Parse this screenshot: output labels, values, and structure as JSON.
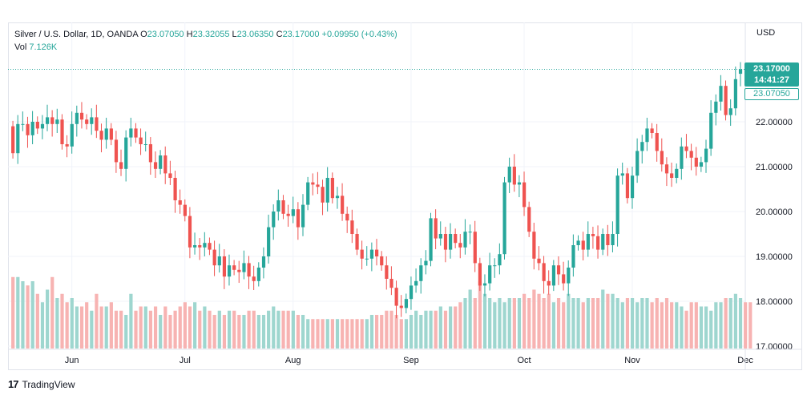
{
  "legend": {
    "symbol": "Silver / U.S. Dollar, 1D, OANDA",
    "o_label": "O",
    "o_value": "23.07050",
    "h_label": "H",
    "h_value": "23.32055",
    "l_label": "L",
    "l_value": "23.06350",
    "c_label": "C",
    "c_value": "23.17000",
    "change": "+0.09950 (+0.43%)",
    "vol_label": "Vol",
    "vol_value": "7.126K"
  },
  "currency": "USD",
  "last_price": "23.17000",
  "countdown": "14:41:27",
  "open_price": "23.07050",
  "branding": "TradingView",
  "colors": {
    "up": "#26a69a",
    "down": "#ef5350",
    "up_vol": "#9ed6cf",
    "down_vol": "#f7b3b2",
    "grid": "#f0f3fa"
  },
  "chart_data": {
    "type": "candlestick",
    "title": "Silver / U.S. Dollar, 1D, OANDA",
    "ylim": [
      17.0,
      24.0
    ],
    "y_ticks": [
      "17.00000",
      "18.00000",
      "19.00000",
      "20.00000",
      "21.00000",
      "22.00000"
    ],
    "x_ticks": [
      "Jun",
      "Jul",
      "Aug",
      "Sep",
      "Oct",
      "Nov",
      "Dec"
    ],
    "tick_index": [
      12,
      35,
      57,
      81,
      104,
      126,
      149
    ],
    "grid": true,
    "closes": [
      21.3,
      21.95,
      21.95,
      21.7,
      22.0,
      21.85,
      21.95,
      22.1,
      21.95,
      22.05,
      21.5,
      21.45,
      21.95,
      22.2,
      22.05,
      21.95,
      22.1,
      21.8,
      21.6,
      21.85,
      21.6,
      21.1,
      20.95,
      21.65,
      21.85,
      21.65,
      21.5,
      21.5,
      21.1,
      20.95,
      21.25,
      20.85,
      20.75,
      20.25,
      20.15,
      19.9,
      19.2,
      19.25,
      19.2,
      19.3,
      19.15,
      18.8,
      19.0,
      18.55,
      18.8,
      18.7,
      18.65,
      18.85,
      18.55,
      18.45,
      18.75,
      19.0,
      19.65,
      20.0,
      20.25,
      19.95,
      19.9,
      20.05,
      19.65,
      20.15,
      20.65,
      20.6,
      20.55,
      20.2,
      20.75,
      20.3,
      20.35,
      19.95,
      19.8,
      19.5,
      19.15,
      18.95,
      18.95,
      19.15,
      19.0,
      18.8,
      18.5,
      18.3,
      17.9,
      17.85,
      18.05,
      18.35,
      18.45,
      18.8,
      18.9,
      19.85,
      19.4,
      19.5,
      19.15,
      19.5,
      19.3,
      19.2,
      19.55,
      19.55,
      18.85,
      18.35,
      18.4,
      18.8,
      18.8,
      19.05,
      20.65,
      21.0,
      20.6,
      20.65,
      20.1,
      19.55,
      18.95,
      18.85,
      18.45,
      18.35,
      18.8,
      18.6,
      18.4,
      18.75,
      19.25,
      19.35,
      19.15,
      19.5,
      19.45,
      19.15,
      19.5,
      19.25,
      19.5,
      20.8,
      20.85,
      20.3,
      20.8,
      21.35,
      21.55,
      21.85,
      21.75,
      21.35,
      21.05,
      20.85,
      20.75,
      20.95,
      21.45,
      21.35,
      21.2,
      21.0,
      21.1,
      21.4,
      22.2,
      22.45,
      22.8,
      22.15,
      22.3,
      22.95,
      23.17
    ],
    "opens": [
      21.9,
      21.3,
      21.95,
      21.95,
      21.7,
      22.0,
      21.85,
      21.95,
      22.1,
      21.95,
      22.05,
      21.5,
      21.45,
      21.95,
      22.2,
      22.05,
      21.95,
      22.1,
      21.8,
      21.6,
      21.85,
      21.6,
      21.1,
      20.95,
      21.65,
      21.85,
      21.65,
      21.5,
      21.5,
      21.1,
      20.95,
      21.25,
      20.85,
      20.75,
      20.25,
      20.15,
      19.9,
      19.2,
      19.25,
      19.2,
      19.3,
      19.15,
      18.8,
      19.0,
      18.55,
      18.8,
      18.7,
      18.65,
      18.85,
      18.55,
      18.45,
      18.75,
      19.0,
      19.65,
      20.0,
      20.25,
      19.95,
      19.9,
      20.05,
      19.65,
      20.15,
      20.65,
      20.6,
      20.55,
      20.2,
      20.75,
      20.3,
      20.35,
      19.95,
      19.8,
      19.5,
      19.15,
      18.95,
      18.95,
      19.15,
      19.0,
      18.8,
      18.5,
      18.3,
      17.9,
      17.85,
      18.05,
      18.35,
      18.45,
      18.8,
      18.9,
      19.85,
      19.4,
      19.5,
      19.15,
      19.5,
      19.3,
      19.2,
      19.55,
      19.55,
      18.85,
      18.35,
      18.4,
      18.8,
      18.8,
      19.05,
      20.65,
      21.0,
      20.6,
      20.65,
      20.1,
      19.55,
      18.95,
      18.85,
      18.45,
      18.35,
      18.8,
      18.6,
      18.4,
      18.75,
      19.25,
      19.35,
      19.15,
      19.5,
      19.45,
      19.15,
      19.5,
      19.25,
      19.5,
      20.8,
      20.85,
      20.3,
      20.8,
      21.35,
      21.55,
      21.85,
      21.75,
      21.35,
      21.05,
      20.85,
      20.75,
      20.95,
      21.45,
      21.35,
      21.2,
      21.0,
      21.1,
      21.4,
      22.2,
      22.45,
      22.8,
      22.15,
      22.3,
      23.07
    ],
    "volumes": [
      0.85,
      0.85,
      0.8,
      0.75,
      0.8,
      0.65,
      0.55,
      0.7,
      0.85,
      0.6,
      0.65,
      0.55,
      0.6,
      0.5,
      0.5,
      0.55,
      0.45,
      0.65,
      0.5,
      0.5,
      0.55,
      0.45,
      0.45,
      0.4,
      0.65,
      0.45,
      0.5,
      0.5,
      0.45,
      0.5,
      0.4,
      0.5,
      0.4,
      0.45,
      0.5,
      0.55,
      0.5,
      0.55,
      0.45,
      0.5,
      0.45,
      0.4,
      0.45,
      0.4,
      0.45,
      0.45,
      0.4,
      0.4,
      0.45,
      0.45,
      0.4,
      0.4,
      0.45,
      0.5,
      0.45,
      0.45,
      0.45,
      0.45,
      0.4,
      0.4,
      0.35,
      0.35,
      0.35,
      0.35,
      0.35,
      0.35,
      0.35,
      0.35,
      0.35,
      0.35,
      0.35,
      0.35,
      0.35,
      0.4,
      0.4,
      0.4,
      0.45,
      0.45,
      0.4,
      0.35,
      0.35,
      0.4,
      0.45,
      0.4,
      0.45,
      0.45,
      0.45,
      0.5,
      0.45,
      0.5,
      0.5,
      0.55,
      0.6,
      0.7,
      0.6,
      0.8,
      0.65,
      0.6,
      0.55,
      0.6,
      0.55,
      0.6,
      0.6,
      0.6,
      0.65,
      0.6,
      0.7,
      0.65,
      0.6,
      0.65,
      0.55,
      0.6,
      0.55,
      0.65,
      0.6,
      0.6,
      0.55,
      0.6,
      0.6,
      0.6,
      0.7,
      0.65,
      0.65,
      0.6,
      0.55,
      0.6,
      0.6,
      0.55,
      0.6,
      0.6,
      0.55,
      0.6,
      0.55,
      0.6,
      0.55,
      0.55,
      0.5,
      0.45,
      0.55,
      0.55,
      0.5,
      0.5,
      0.45,
      0.55,
      0.55,
      0.6,
      0.6,
      0.65,
      0.6,
      0.55,
      0.55
    ]
  }
}
